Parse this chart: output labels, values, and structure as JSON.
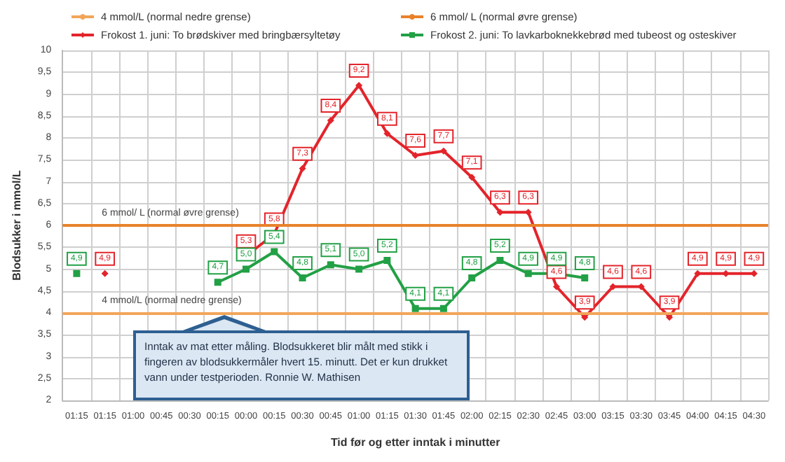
{
  "chart_data": {
    "type": "line",
    "xlabel": "Tid før og etter inntak i minutter",
    "ylabel": "Blodsukker i mmol/L",
    "categories": [
      "01:15",
      "01:15",
      "01:00",
      "00:45",
      "00:30",
      "00:15",
      "00:00",
      "00:15",
      "00:30",
      "00:45",
      "01:00",
      "01:15",
      "01:30",
      "01:45",
      "02:00",
      "02:15",
      "02:30",
      "02:45",
      "03:00",
      "03:15",
      "03:30",
      "03:45",
      "04:00",
      "04:15",
      "04:30"
    ],
    "series": [
      {
        "name": "Frokost 1. juni: To brødskiver med bringbærsyltetøy",
        "color": "#e3242b",
        "marker": "diamond",
        "values": [
          null,
          4.9,
          null,
          null,
          null,
          null,
          5.3,
          5.8,
          7.3,
          8.4,
          9.2,
          8.1,
          7.6,
          7.7,
          7.1,
          6.3,
          6.3,
          4.6,
          3.9,
          4.6,
          4.6,
          3.9,
          4.9,
          4.9,
          4.9
        ],
        "value_labels": [
          null,
          "4,9",
          null,
          null,
          null,
          null,
          "5,3",
          "5,8",
          "7,3",
          "8,4",
          "9,2",
          "8,1",
          "7,6",
          "7,7",
          "7,1",
          "6,3",
          "6,3",
          "4,6",
          "3,9",
          "4,6",
          "4,6",
          "3,9",
          "4,9",
          "4,9",
          "4,9"
        ]
      },
      {
        "name": "Frokost 2. juni: To lavkarboknekkebrød med tubeost og osteskiver",
        "color": "#22a045",
        "marker": "square",
        "values": [
          4.9,
          null,
          null,
          null,
          null,
          4.7,
          5.0,
          5.4,
          4.8,
          5.1,
          5.0,
          5.2,
          4.1,
          4.1,
          4.8,
          5.2,
          4.9,
          4.9,
          4.8,
          null,
          null,
          null,
          null,
          null,
          null
        ],
        "value_labels": [
          "4,9",
          null,
          null,
          null,
          null,
          "4,7",
          "5,0",
          "5,4",
          "4,8",
          "5,1",
          "5,0",
          "5,2",
          "4,1",
          "4,1",
          "4,8",
          "5,2",
          "4,9",
          "4,9",
          "4,8",
          null,
          null,
          null,
          null,
          null,
          null
        ]
      }
    ],
    "ref_lines": [
      {
        "axis": "y",
        "value": 4,
        "label": "4 mmol/L (normal nedre grense)",
        "color": "#f2a55a"
      },
      {
        "axis": "y",
        "value": 6,
        "label": "6 mmol/ L (normal øvre grense)",
        "color": "#e8822a"
      }
    ],
    "ylim": [
      2,
      10
    ],
    "yticks": [
      2,
      {
        "value": 2.5,
        "label": "2,5"
      },
      3,
      {
        "value": 3.5,
        "label": "3,5"
      },
      4,
      {
        "value": 4.5,
        "label": "4,5"
      },
      5,
      {
        "value": 5.5,
        "label": "5,5"
      },
      6,
      {
        "value": 6.5,
        "label": "6,5"
      },
      7,
      {
        "value": 7.5,
        "label": "7,5"
      },
      8,
      {
        "value": 8.5,
        "label": "8,5"
      },
      9,
      {
        "value": 9.5,
        "label": "9,5"
      },
      10
    ],
    "grid": true,
    "legend": "top",
    "line_style": "solid",
    "annotations": [
      "Inntak av mat etter måling. Blodsukkeret blir målt med stikk i fingeren av blodsukkermåler hvert 15. minutt. Det er kun drukket vann under testperioden.  Ronnie W. Mathisen"
    ]
  }
}
